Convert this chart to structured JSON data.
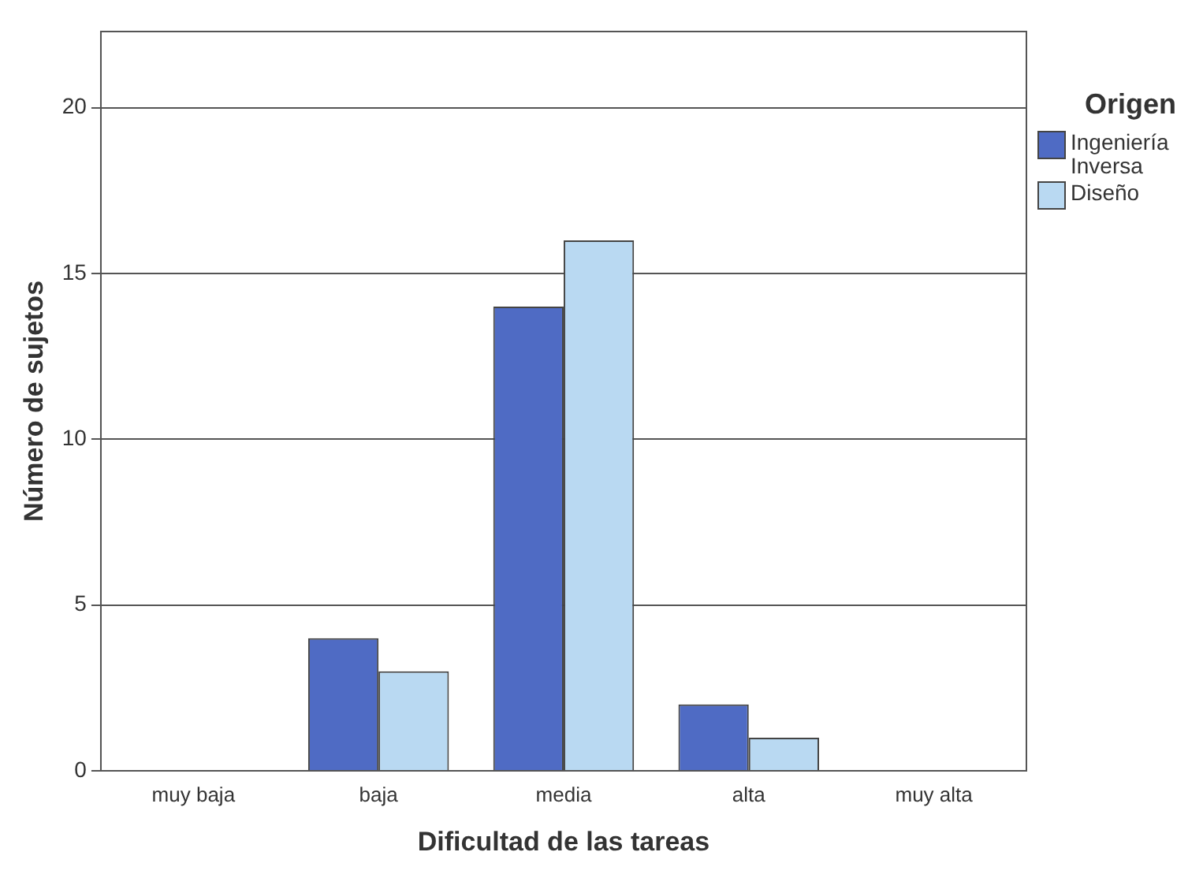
{
  "chart_data": {
    "type": "bar",
    "xlabel": "Dificultad de las tareas",
    "ylabel": "Número de sujetos",
    "legend_title": "Origen",
    "categories": [
      "muy baja",
      "baja",
      "media",
      "alta",
      "muy alta"
    ],
    "series": [
      {
        "name": "Ingeniería Inversa",
        "color": "#4f6bc4",
        "values": [
          0,
          4,
          14,
          2,
          0
        ]
      },
      {
        "name": "Diseño",
        "color": "#b9d9f2",
        "values": [
          0,
          3,
          16,
          1,
          0
        ]
      }
    ],
    "ylim": [
      0,
      22.3
    ],
    "yticks": [
      0,
      5,
      10,
      15,
      20
    ],
    "grid": "y",
    "legend": "right"
  }
}
